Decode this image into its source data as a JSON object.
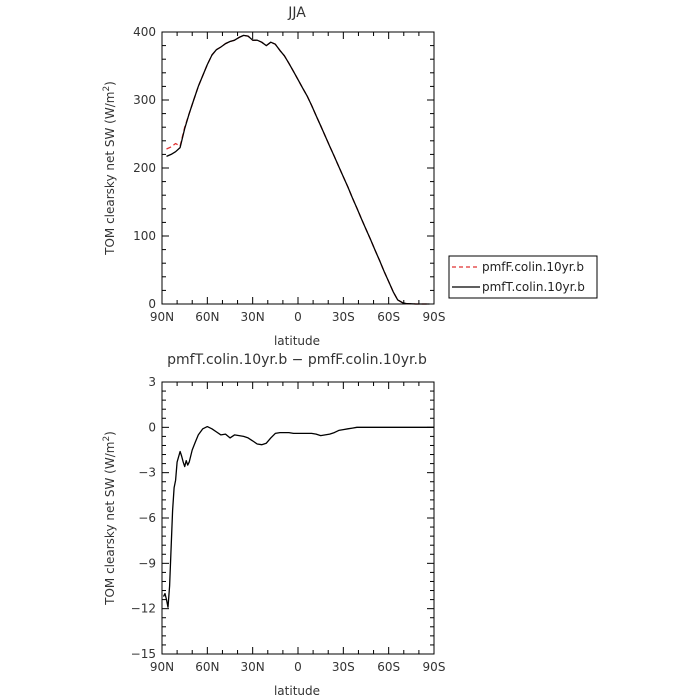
{
  "chart_data": [
    {
      "type": "line",
      "title": "JJA",
      "xlabel": "latitude",
      "ylabel_main": "TOM clearsky net SW (W/m",
      "ylabel_sup": "2",
      "ylabel_close": ")",
      "xlim": [
        90,
        -90
      ],
      "ylim": [
        0,
        400
      ],
      "yticks": [
        0,
        100,
        200,
        300,
        400
      ],
      "ytick_labels": [
        "0",
        "100",
        "200",
        "300",
        "400"
      ],
      "xticks": [
        90,
        60,
        30,
        0,
        -30,
        -60,
        -90
      ],
      "xtick_labels": [
        "90N",
        "60N",
        "30N",
        "0",
        "30S",
        "60S",
        "90S"
      ],
      "grid": false,
      "legend_position": "right",
      "series": [
        {
          "name": "pmfF.colin.10yr.b",
          "color": "#e03030",
          "dash": "dashed",
          "x": [
            87,
            84,
            81,
            78,
            75,
            72,
            69,
            66,
            63,
            60,
            57,
            54,
            51,
            48,
            45,
            42,
            39,
            36,
            33,
            30,
            27,
            24,
            21,
            18,
            15,
            12,
            9,
            6,
            3,
            0,
            -3,
            -6,
            -9,
            -12,
            -15,
            -18,
            -21,
            -24,
            -27,
            -30,
            -33,
            -36,
            -39,
            -42,
            -45,
            -48,
            -51,
            -54,
            -57,
            -60,
            -63,
            -66,
            -69,
            -72,
            -75,
            -78,
            -81,
            -84,
            -87
          ],
          "y": [
            228,
            231,
            236,
            232,
            260,
            280,
            300,
            320,
            336,
            352,
            366,
            374,
            378,
            383,
            386,
            388,
            392,
            395,
            394,
            388,
            388,
            385,
            380,
            385,
            382,
            373,
            365,
            354,
            342,
            330,
            318,
            306,
            292,
            277,
            262,
            247,
            232,
            217,
            202,
            187,
            172,
            156,
            141,
            125,
            110,
            95,
            79,
            64,
            48,
            33,
            18,
            6,
            2,
            0.5,
            0.3,
            0,
            0,
            0,
            0
          ]
        },
        {
          "name": "pmfT.colin.10yr.b",
          "color": "#000000",
          "dash": "solid",
          "x": [
            87,
            84,
            81,
            78,
            75,
            72,
            69,
            66,
            63,
            60,
            57,
            54,
            51,
            48,
            45,
            42,
            39,
            36,
            33,
            30,
            27,
            24,
            21,
            18,
            15,
            12,
            9,
            6,
            3,
            0,
            -3,
            -6,
            -9,
            -12,
            -15,
            -18,
            -21,
            -24,
            -27,
            -30,
            -33,
            -36,
            -39,
            -42,
            -45,
            -48,
            -51,
            -54,
            -57,
            -60,
            -63,
            -66,
            -69,
            -72,
            -75,
            -78,
            -81,
            -84,
            -87
          ],
          "y": [
            217,
            220,
            224,
            230,
            258,
            280,
            300,
            320,
            336,
            352,
            366,
            374,
            378,
            383,
            386,
            388,
            392,
            395,
            394,
            388,
            388,
            385,
            380,
            385,
            382,
            373,
            365,
            354,
            342,
            330,
            318,
            306,
            292,
            277,
            262,
            247,
            232,
            217,
            202,
            187,
            172,
            156,
            141,
            125,
            110,
            95,
            79,
            64,
            48,
            33,
            18,
            6,
            2,
            0.5,
            0.3,
            0,
            0,
            0,
            0
          ]
        }
      ]
    },
    {
      "type": "line",
      "title": "pmfT.colin.10yr.b − pmfF.colin.10yr.b",
      "xlabel": "latitude",
      "ylabel_main": "TOM clearsky net SW (W/m",
      "ylabel_sup": "2",
      "ylabel_close": ")",
      "xlim": [
        90,
        -90
      ],
      "ylim": [
        -15,
        3
      ],
      "yticks": [
        3,
        0,
        -3,
        -6,
        -9,
        -12,
        -15
      ],
      "ytick_labels": [
        "3",
        "0",
        "−3",
        "−6",
        "−9",
        "−12",
        "−15"
      ],
      "xticks": [
        90,
        60,
        30,
        0,
        -30,
        -60,
        -90
      ],
      "xtick_labels": [
        "90N",
        "60N",
        "30N",
        "0",
        "30S",
        "60S",
        "90S"
      ],
      "grid": false,
      "series": [
        {
          "color": "#000000",
          "dash": "solid",
          "x": [
            89,
            88,
            87,
            86,
            85,
            84,
            83,
            82,
            81,
            80,
            78,
            77,
            76,
            75,
            74,
            73,
            72,
            70,
            68,
            66,
            63,
            60,
            57,
            54,
            51,
            48,
            45,
            42,
            39,
            36,
            33,
            30,
            27,
            24,
            21,
            18,
            15,
            12,
            9,
            6,
            3,
            0,
            -3,
            -6,
            -9,
            -12,
            -15,
            -18,
            -21,
            -24,
            -27,
            -30,
            -33,
            -36,
            -39,
            -42,
            -45,
            -48,
            -51,
            -54,
            -57,
            -60,
            -63,
            -66,
            -69,
            -72,
            -75,
            -78,
            -81,
            -84,
            -87,
            -90
          ],
          "y": [
            -11.2,
            -11.0,
            -11.4,
            -11.9,
            -10.5,
            -8.0,
            -5.5,
            -4.0,
            -3.5,
            -2.3,
            -1.6,
            -1.9,
            -2.3,
            -2.6,
            -2.2,
            -2.5,
            -2.3,
            -1.5,
            -1.0,
            -0.5,
            -0.1,
            0.05,
            -0.1,
            -0.3,
            -0.5,
            -0.45,
            -0.7,
            -0.5,
            -0.55,
            -0.6,
            -0.7,
            -0.9,
            -1.1,
            -1.15,
            -1.05,
            -0.7,
            -0.4,
            -0.35,
            -0.35,
            -0.35,
            -0.4,
            -0.4,
            -0.4,
            -0.4,
            -0.4,
            -0.45,
            -0.55,
            -0.5,
            -0.45,
            -0.35,
            -0.2,
            -0.15,
            -0.1,
            -0.05,
            0,
            0,
            0,
            0,
            0,
            0,
            0,
            0,
            0,
            0,
            0,
            0,
            0,
            0,
            0,
            0,
            0,
            0
          ]
        }
      ]
    }
  ]
}
